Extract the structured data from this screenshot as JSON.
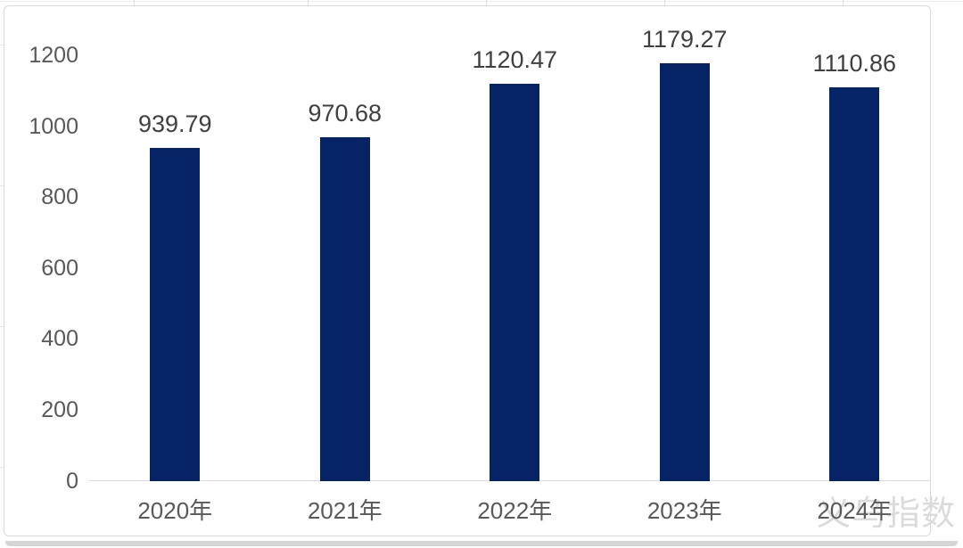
{
  "chart_data": {
    "type": "bar",
    "categories": [
      "2020年",
      "2021年",
      "2022年",
      "2023年",
      "2024年"
    ],
    "values": [
      939.79,
      970.68,
      1120.47,
      1179.27,
      1110.86
    ],
    "value_labels": [
      "939.79",
      "970.68",
      "1120.47",
      "1179.27",
      "1110.86"
    ],
    "title": "",
    "xlabel": "",
    "ylabel": "",
    "ylim": [
      0,
      1200
    ],
    "yticks": [
      0,
      200,
      400,
      600,
      800,
      1000,
      1200
    ],
    "grid": false,
    "legend": "none",
    "bar_color": "#062366",
    "axis_line_color": "#d9d9d9",
    "tick_label_color": "#595959",
    "value_label_color": "#404040",
    "category_label_color": "#595959"
  },
  "watermark": {
    "text": "义乌指数",
    "color": "#dbdbdb"
  }
}
